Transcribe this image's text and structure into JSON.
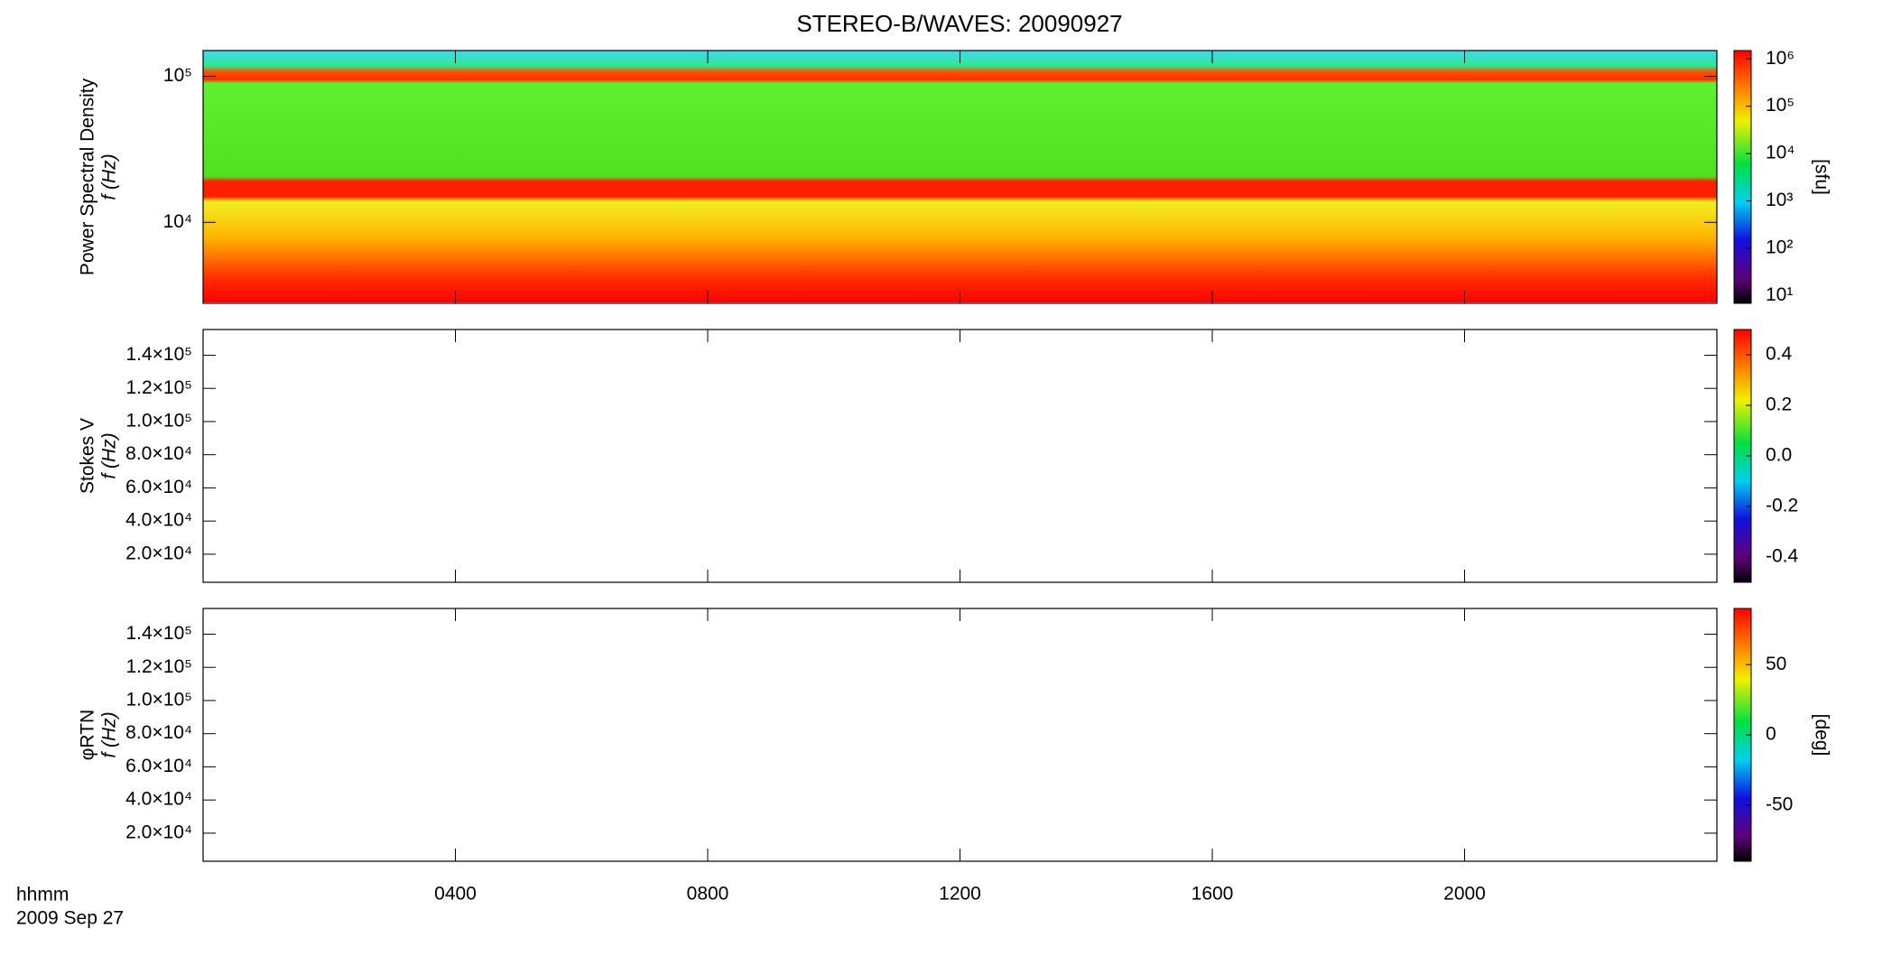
{
  "chart_data": [
    {
      "type": "heatmap",
      "title": "STEREO-B/WAVES: 20090927",
      "ylabel": [
        "Power Spectral Density",
        "f (Hz)"
      ],
      "xlim": [
        0,
        24
      ],
      "xticks": [
        4,
        8,
        12,
        16,
        20
      ],
      "ylog": true,
      "ylim": [
        2790,
        150000
      ],
      "yticks": [
        {
          "value": 10000,
          "label": "10⁴"
        },
        {
          "value": 100000,
          "label": "10⁵"
        }
      ],
      "colorbar": {
        "label": "[sfu]",
        "log": true,
        "lim": [
          6.9,
          1500000
        ],
        "ticks": [
          {
            "value": 10,
            "label": "10¹"
          },
          {
            "value": 100,
            "label": "10²"
          },
          {
            "value": 1000,
            "label": "10³"
          },
          {
            "value": 10000,
            "label": "10⁴"
          },
          {
            "value": 100000,
            "label": "10⁵"
          },
          {
            "value": 1000000,
            "label": "10⁶"
          }
        ]
      }
    },
    {
      "type": "heatmap",
      "ylabel": [
        "Stokes V",
        "f (Hz)"
      ],
      "xlim": [
        0,
        24
      ],
      "xticks": [
        4,
        8,
        12,
        16,
        20
      ],
      "ylog": false,
      "ylim": [
        3070,
        155500
      ],
      "yticks": [
        {
          "value": 20000,
          "label": "2.0×10⁴"
        },
        {
          "value": 40000,
          "label": "4.0×10⁴"
        },
        {
          "value": 60000,
          "label": "6.0×10⁴"
        },
        {
          "value": 80000,
          "label": "8.0×10⁴"
        },
        {
          "value": 100000,
          "label": "1.0×10⁵"
        },
        {
          "value": 120000,
          "label": "1.2×10⁵"
        },
        {
          "value": 140000,
          "label": "1.4×10⁵"
        }
      ],
      "colorbar": {
        "log": false,
        "lim": [
          -0.5,
          0.5
        ],
        "ticks": [
          {
            "value": -0.4,
            "label": "-0.4"
          },
          {
            "value": -0.2,
            "label": "-0.2"
          },
          {
            "value": 0,
            "label": "0.0"
          },
          {
            "value": 0.2,
            "label": "0.2"
          },
          {
            "value": 0.4,
            "label": "0.4"
          }
        ]
      }
    },
    {
      "type": "heatmap",
      "ylabel": [
        "φRTN",
        "f (Hz)"
      ],
      "xlim": [
        0,
        24
      ],
      "xticks": [
        {
          "value": 4,
          "label": "0400"
        },
        {
          "value": 8,
          "label": "0800"
        },
        {
          "value": 12,
          "label": "1200"
        },
        {
          "value": 16,
          "label": "1600"
        },
        {
          "value": 20,
          "label": "2000"
        }
      ],
      "xlabel": "hhmm",
      "date": "2009 Sep 27",
      "ylog": false,
      "ylim": [
        3070,
        155500
      ],
      "yticks": [
        {
          "value": 20000,
          "label": "2.0×10⁴"
        },
        {
          "value": 40000,
          "label": "4.0×10⁴"
        },
        {
          "value": 60000,
          "label": "6.0×10⁴"
        },
        {
          "value": 80000,
          "label": "8.0×10⁴"
        },
        {
          "value": 100000,
          "label": "1.0×10⁵"
        },
        {
          "value": 120000,
          "label": "1.2×10⁵"
        },
        {
          "value": 140000,
          "label": "1.4×10⁵"
        }
      ],
      "colorbar": {
        "label": "[deg]",
        "log": false,
        "lim": [
          -90,
          90
        ],
        "ticks": [
          -50,
          0,
          50
        ]
      }
    }
  ]
}
